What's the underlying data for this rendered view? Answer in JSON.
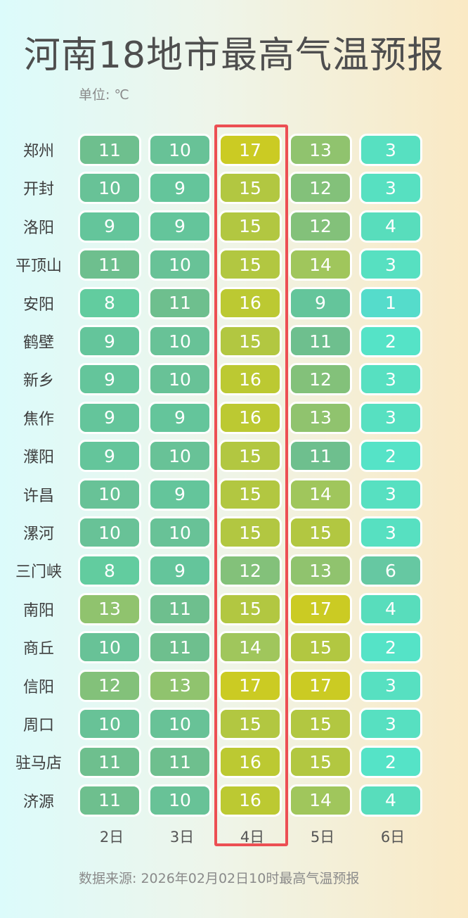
{
  "title": "河南18地市最高气温预报",
  "unit": "单位: ℃",
  "source": "数据来源: 2026年02月02日10时最高气温预报",
  "chart_data": {
    "type": "heatmap",
    "title": "河南18地市最高气温预报",
    "unit": "℃",
    "columns": [
      "2日",
      "3日",
      "4日",
      "5日",
      "6日"
    ],
    "highlighted_column": "4日",
    "rows": [
      "郑州",
      "开封",
      "洛阳",
      "平顶山",
      "安阳",
      "鹤壁",
      "新乡",
      "焦作",
      "濮阳",
      "许昌",
      "漯河",
      "三门峡",
      "南阳",
      "商丘",
      "信阳",
      "周口",
      "驻马店",
      "济源"
    ],
    "values": [
      [
        11,
        10,
        17,
        13,
        3
      ],
      [
        10,
        9,
        15,
        12,
        3
      ],
      [
        9,
        9,
        15,
        12,
        4
      ],
      [
        11,
        10,
        15,
        14,
        3
      ],
      [
        8,
        11,
        16,
        9,
        1
      ],
      [
        9,
        10,
        15,
        11,
        2
      ],
      [
        9,
        10,
        16,
        12,
        3
      ],
      [
        9,
        9,
        16,
        13,
        3
      ],
      [
        9,
        10,
        15,
        11,
        2
      ],
      [
        10,
        9,
        15,
        14,
        3
      ],
      [
        10,
        10,
        15,
        15,
        3
      ],
      [
        8,
        9,
        12,
        13,
        6
      ],
      [
        13,
        11,
        15,
        17,
        4
      ],
      [
        10,
        11,
        14,
        15,
        2
      ],
      [
        12,
        13,
        17,
        17,
        3
      ],
      [
        10,
        10,
        15,
        15,
        3
      ],
      [
        11,
        11,
        16,
        15,
        2
      ],
      [
        11,
        10,
        16,
        14,
        4
      ]
    ],
    "colors": {
      "1": "#55dccb",
      "2": "#55e3c7",
      "3": "#57e0c1",
      "4": "#58ddbc",
      "6": "#66c8a2",
      "8": "#62cc9f",
      "9": "#64c59b",
      "10": "#68c297",
      "11": "#6ebf8e",
      "12": "#83c17a",
      "13": "#90c36e",
      "14": "#a0c65c",
      "15": "#b2c741",
      "16": "#bcc932",
      "17": "#cbcb23"
    },
    "highlight_color": "#ec4f53"
  }
}
